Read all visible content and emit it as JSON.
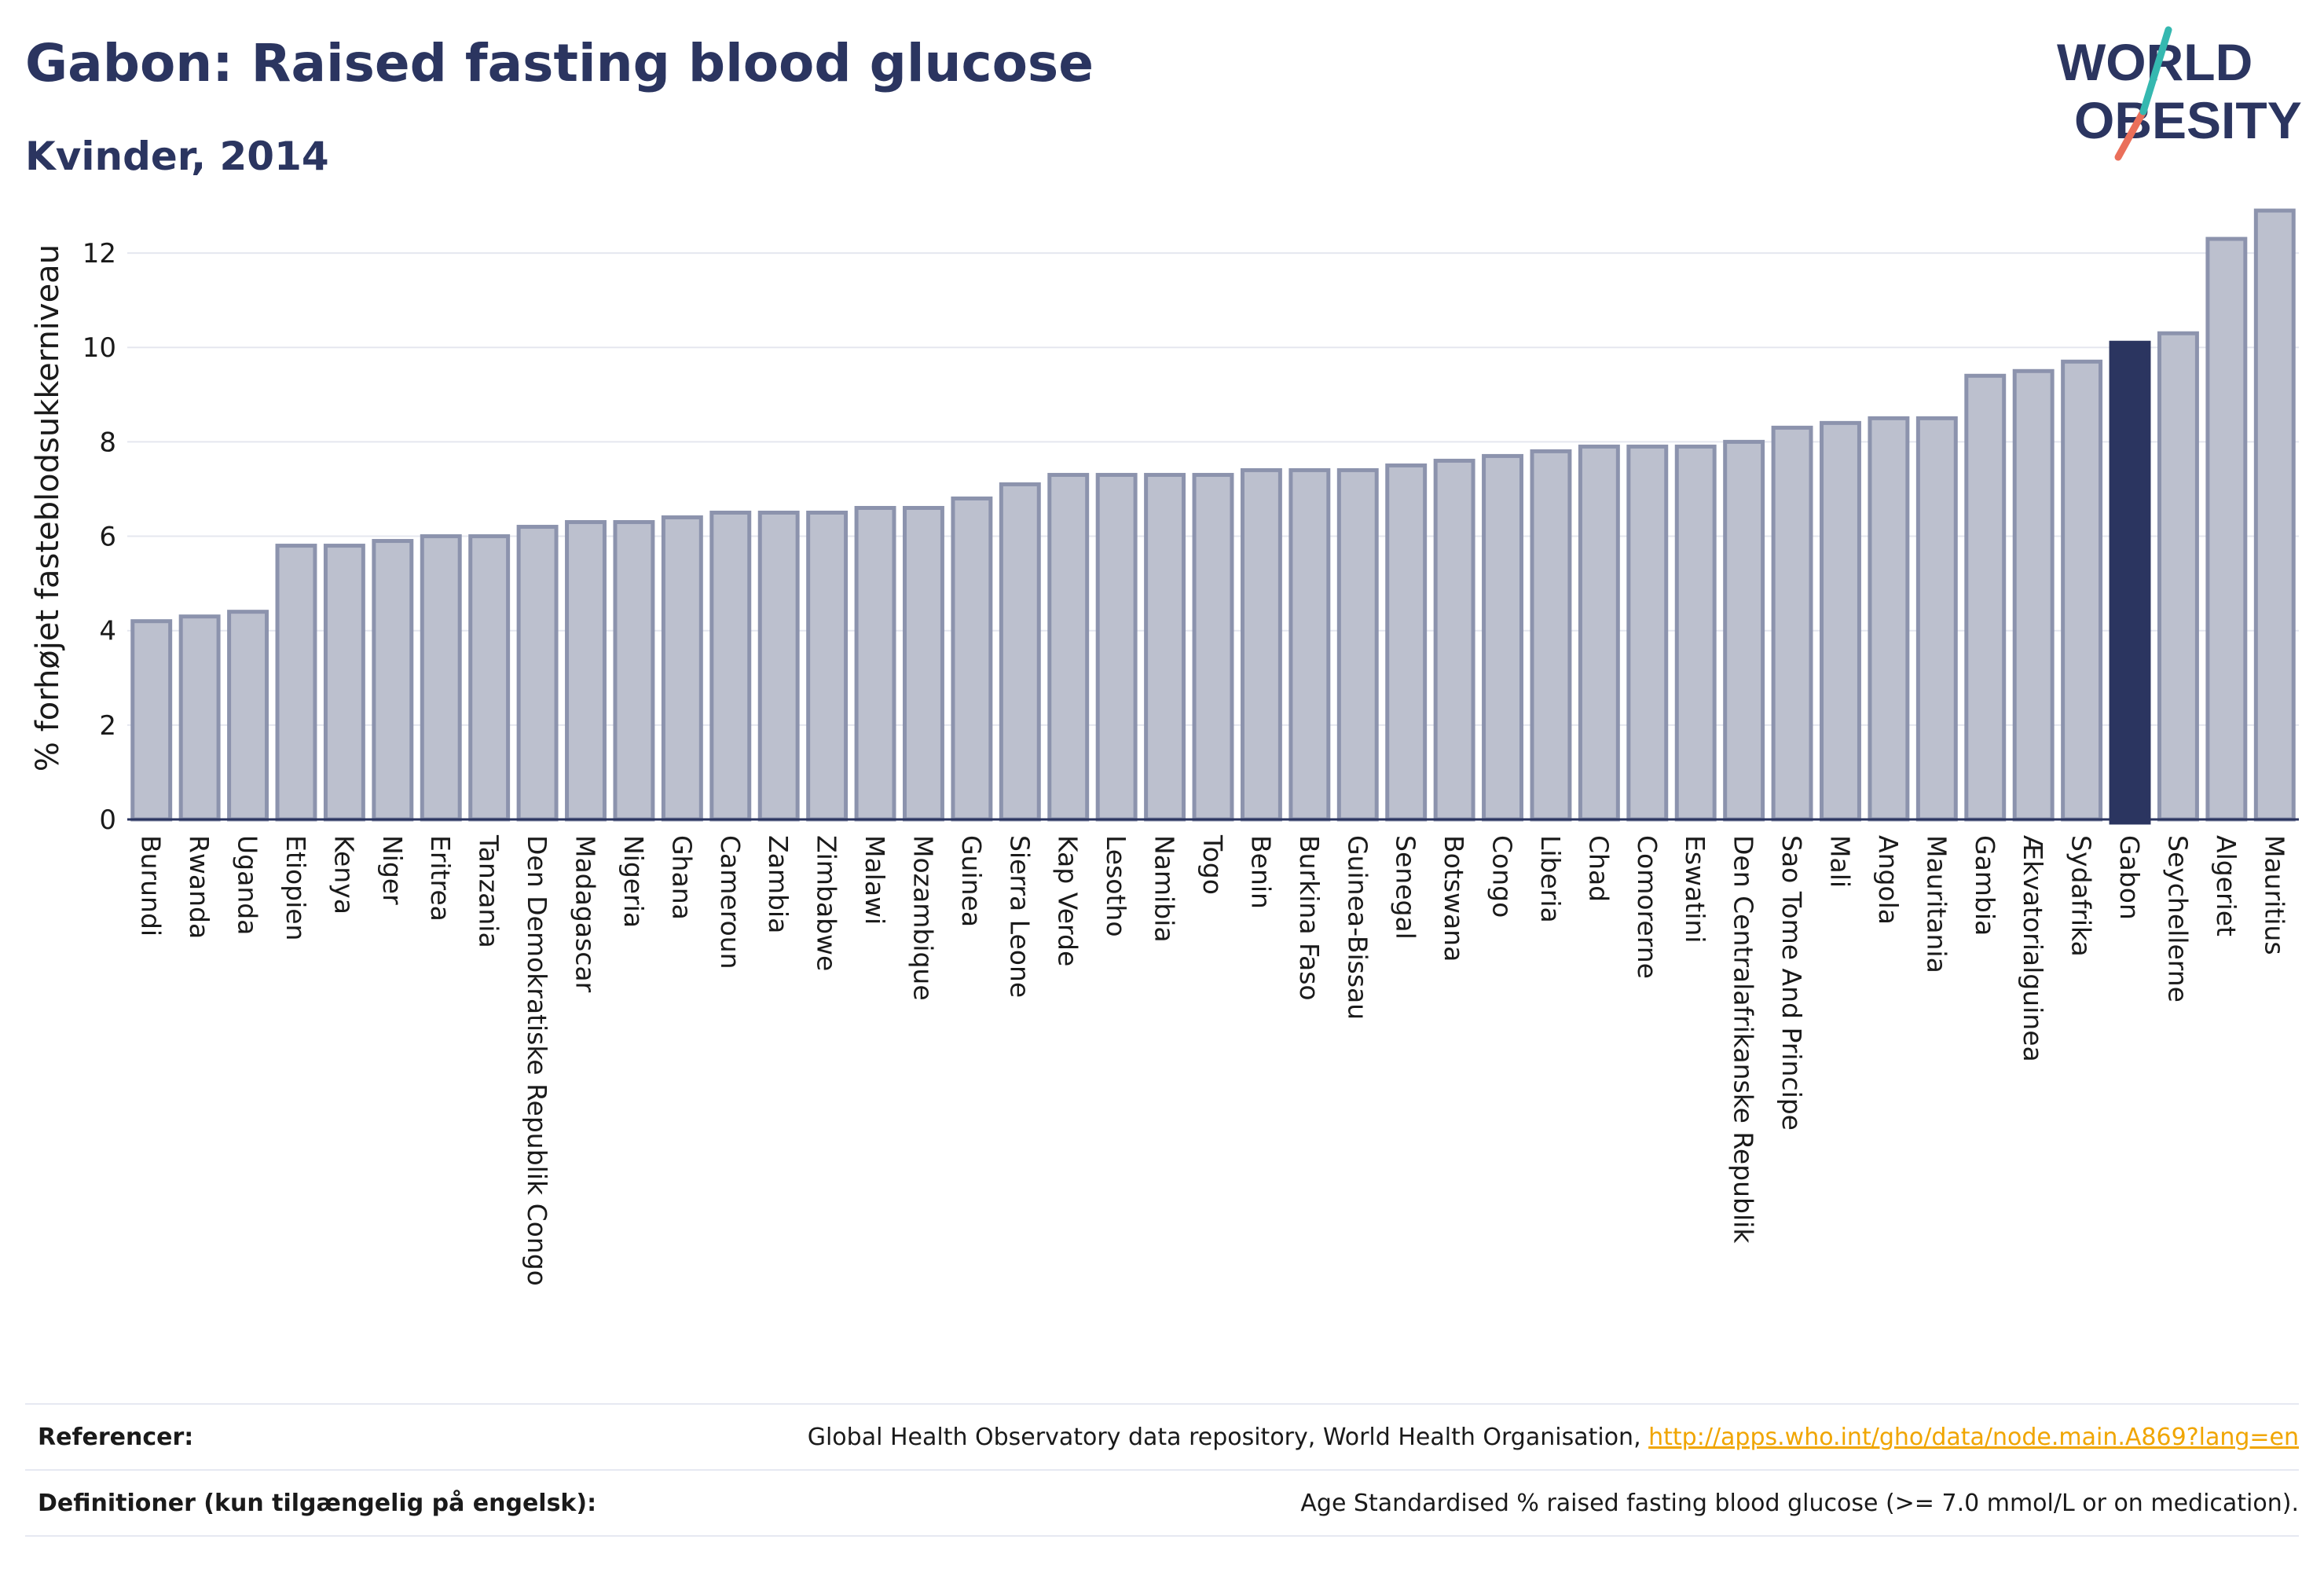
{
  "header": {
    "title": "Gabon: Raised fasting blood glucose",
    "subtitle": "Kvinder, 2014"
  },
  "logo": {
    "line1": "WORLD",
    "line2": "OBESITY"
  },
  "colors": {
    "bar": "#bcc0ce",
    "bar_stroke": "#8c93ad",
    "highlight": "#2b3560",
    "grid": "#e5e7ef",
    "accent_teal": "#35b8b0",
    "accent_coral": "#ea6f5a"
  },
  "chart_data": {
    "type": "bar",
    "title": "Gabon: Raised fasting blood glucose",
    "subtitle": "Kvinder, 2014",
    "xlabel": "",
    "ylabel": "% forhøjet fasteblodsukkerniveau",
    "ylim": [
      0,
      13.2
    ],
    "yticks": [
      0,
      2,
      4,
      6,
      8,
      10,
      12
    ],
    "grid": true,
    "highlight": "Gabon",
    "categories": [
      "Burundi",
      "Rwanda",
      "Uganda",
      "Etiopien",
      "Kenya",
      "Niger",
      "Eritrea",
      "Tanzania",
      "Den Demokratiske Republik Congo",
      "Madagascar",
      "Nigeria",
      "Ghana",
      "Cameroun",
      "Zambia",
      "Zimbabwe",
      "Malawi",
      "Mozambique",
      "Guinea",
      "Sierra Leone",
      "Kap Verde",
      "Lesotho",
      "Namibia",
      "Togo",
      "Benin",
      "Burkina Faso",
      "Guinea-Bissau",
      "Senegal",
      "Botswana",
      "Congo",
      "Liberia",
      "Chad",
      "Comorerne",
      "Eswatini",
      "Den Centralafrikanske Republik",
      "Sao Tome And Principe",
      "Mali",
      "Angola",
      "Mauritania",
      "Gambia",
      "Ækvatorialguinea",
      "Sydafrika",
      "Gabon",
      "Seychellerne",
      "Algeriet",
      "Mauritius"
    ],
    "values": [
      4.2,
      4.3,
      4.4,
      5.8,
      5.8,
      5.9,
      6.0,
      6.0,
      6.2,
      6.3,
      6.3,
      6.4,
      6.5,
      6.5,
      6.5,
      6.6,
      6.6,
      6.8,
      7.1,
      7.3,
      7.3,
      7.3,
      7.3,
      7.4,
      7.4,
      7.4,
      7.5,
      7.6,
      7.7,
      7.8,
      7.9,
      7.9,
      7.9,
      8.0,
      8.3,
      8.4,
      8.5,
      8.5,
      9.4,
      9.5,
      9.7,
      10.1,
      10.3,
      12.3,
      12.9
    ]
  },
  "footer": {
    "references_label": "Referencer:",
    "references_text": "Global Health Observatory data repository, World Health Organisation, ",
    "references_link": "http://apps.who.int/gho/data/node.main.A869?lang=en",
    "definitions_label": "Definitioner (kun tilgængelig på engelsk):",
    "definitions_text": "Age Standardised % raised fasting blood glucose (>= 7.0 mmol/L or on medication)."
  }
}
